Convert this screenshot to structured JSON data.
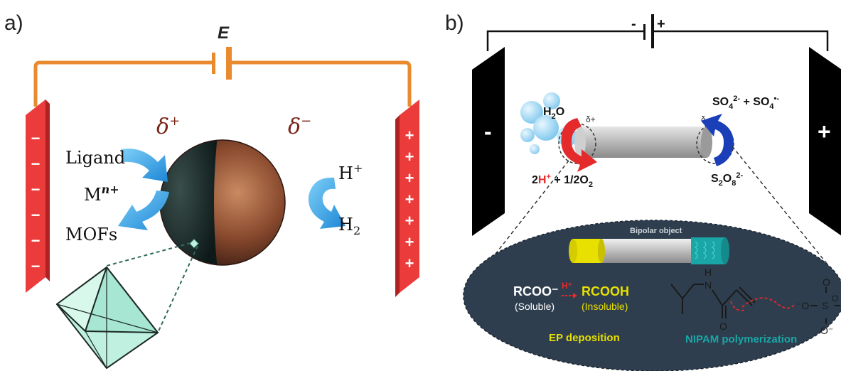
{
  "panel_a": {
    "label": "a)",
    "voltage_label": "E",
    "delta_plus": "δ",
    "delta_plus_sup": "+",
    "delta_minus": "δ",
    "delta_minus_sup": "−",
    "left_steps": {
      "ligand": "Ligand",
      "metal": "M",
      "metal_sup": "n+",
      "product": "MOFs"
    },
    "right_steps": {
      "reactant": "H",
      "reactant_sup": "+",
      "product": "H",
      "product_sub": "2"
    },
    "left_signs": [
      "−",
      "−",
      "−",
      "−",
      "−",
      "−"
    ],
    "right_signs": [
      "+",
      "+",
      "+",
      "+",
      "+",
      "+",
      "+"
    ],
    "colors": {
      "wire": "#e98a2e",
      "electrode": "#ec3b3b",
      "arrow": "#2f9fe0",
      "crystal": "#bff0e0"
    }
  },
  "panel_b": {
    "label": "b)",
    "battery_minus": "-",
    "battery_plus": "+",
    "left_electrode_sign": "-",
    "right_electrode_sign": "+",
    "oxidation": {
      "reactant": "H",
      "reactant_sub": "2",
      "reactant_tail": "O",
      "prod_1": "2",
      "prod_h": "H",
      "prod_sup": "+",
      "prod_2": " + 1/2O",
      "prod_sub": "2"
    },
    "reduction": {
      "reactant": "S",
      "reactant_sub1": "2",
      "reactant_mid": "O",
      "reactant_sub2": "8",
      "reactant_sup": "2-",
      "prod_a": "SO",
      "prod_a_sub": "4",
      "prod_a_sup": "2-",
      "plus": " + ",
      "prod_b": "SO",
      "prod_b_sub": "4",
      "prod_b_sup": "•-"
    },
    "delta_plus": "δ+",
    "delta_minus": "δ-",
    "inset": {
      "object_label": "Bipolar object",
      "acid_base": {
        "reactant": "RCOO⁻",
        "reactant_note": "(Soluble)",
        "catalyst": "H⁺",
        "product": "RCOOH",
        "product_note": "(Insoluble)"
      },
      "ep_label": "EP deposition",
      "nipam_label": "NIPAM polymerization",
      "molecule": {
        "nh": "N",
        "h": "H",
        "o": "O",
        "sulfate_o1": "⁻O",
        "sulfate_s": "S",
        "sulfate_o2": "O",
        "sulfate_o3": "O",
        "sulfate_o4": "O⁻"
      }
    },
    "colors": {
      "electrode": "#000000",
      "inset_bg": "#2e3e4e",
      "yellow": "#e8e000",
      "teal": "#1aa6a6",
      "red_arrow": "#e42a2a",
      "blue_arrow": "#1b3fb8",
      "bubble": "#8fcfef"
    }
  }
}
